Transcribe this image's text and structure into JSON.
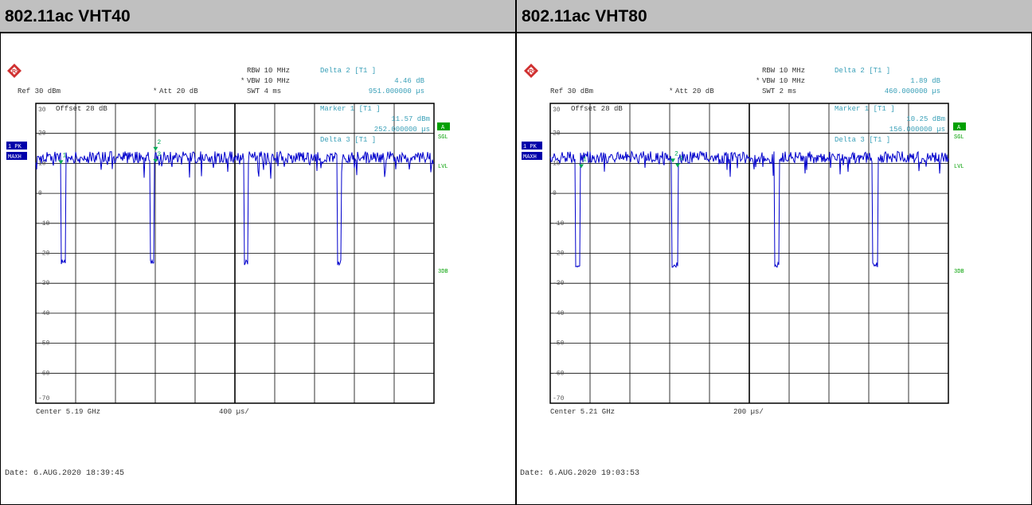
{
  "colors": {
    "trace": "#0000cc",
    "annotation": "#3aa0b8",
    "status_green": "#00a000",
    "grid": "#000000",
    "header_bg": "#c0c0c0"
  },
  "panels": [
    {
      "title": "802.11ac VHT40",
      "logo": "rohde-schwarz-logo",
      "ref_label": "Ref 30 dBm",
      "att_label": "Att 20 dB",
      "rbw_label": "RBW 10 MHz",
      "vbw_label": "VBW 10 MHz",
      "swt_label": "SWT 4 ms",
      "offset_label": "Offset  28 dB",
      "delta2_title": "Delta 2 [T1 ]",
      "delta2_value": "4.46 dB",
      "delta2_time": "951.000000 µs",
      "marker1_title": "Marker 1 [T1 ]",
      "marker1_value": "11.57 dBm",
      "marker1_time": "252.000000 µs",
      "delta3_title": "Delta 3 [T1 ]",
      "delta3_value": "",
      "delta3_time": "",
      "trace_label_1": "1 PK",
      "trace_label_2": "MAXH",
      "side_a": "A",
      "side_sgl": "SGL",
      "side_lvl": "LVL",
      "side_3db": "3DB",
      "center_label": "Center 5.19 GHz",
      "span_label": "400 µs/",
      "date_label": "Date: 6.AUG.2020  18:39:45"
    },
    {
      "title": "802.11ac VHT80",
      "logo": "rohde-schwarz-logo",
      "ref_label": "Ref 30 dBm",
      "att_label": "Att 20 dB",
      "rbw_label": "RBW 10 MHz",
      "vbw_label": "VBW 10 MHz",
      "swt_label": "SWT 2 ms",
      "offset_label": "Offset  28 dB",
      "delta2_title": "Delta 2 [T1 ]",
      "delta2_value": "1.89 dB",
      "delta2_time": "460.000000 µs",
      "marker1_title": "Marker 1 [T1 ]",
      "marker1_value": "10.25 dBm",
      "marker1_time": "156.000000 µs",
      "delta3_title": "Delta 3 [T1 ]",
      "delta3_value": "",
      "delta3_time": "",
      "trace_label_1": "1 PK",
      "trace_label_2": "MAXH",
      "side_a": "A",
      "side_sgl": "SGL",
      "side_lvl": "LVL",
      "side_3db": "3DB",
      "center_label": "Center 5.21 GHz",
      "span_label": "200 µs/",
      "date_label": "Date: 6.AUG.2020  19:03:53"
    }
  ],
  "chart_data": [
    {
      "type": "line",
      "title": "802.11ac VHT40",
      "x_unit": "µs",
      "x_range": [
        0,
        4000
      ],
      "x_per_div": 400,
      "y_unit": "dBm",
      "ylim": [
        -70,
        30
      ],
      "y_ticks": [
        30,
        20,
        10,
        0,
        -10,
        -20,
        -30,
        -40,
        -50,
        -60,
        -70
      ],
      "grid": true,
      "baseline_level": 12,
      "gap_level": -23,
      "gaps": [
        [
          250,
          300
        ],
        [
          1150,
          1190
        ],
        [
          2090,
          2130
        ],
        [
          3030,
          3070
        ]
      ],
      "markers": [
        {
          "label": "1",
          "x": 252,
          "y": 11.57
        },
        {
          "label": "2",
          "x": 1203,
          "y": 16.0
        },
        {
          "label": "3",
          "x": 1203,
          "y": 12.0
        }
      ],
      "series": [
        {
          "values": []
        }
      ]
    },
    {
      "type": "line",
      "title": "802.11ac VHT80",
      "x_unit": "µs",
      "x_range": [
        0,
        2000
      ],
      "x_per_div": 200,
      "y_unit": "dBm",
      "ylim": [
        -70,
        30
      ],
      "y_ticks": [
        30,
        20,
        10,
        0,
        -10,
        -20,
        -30,
        -40,
        -50,
        -60,
        -70
      ],
      "grid": true,
      "baseline_level": 12,
      "gap_level": -24,
      "gaps": [
        [
          125,
          150
        ],
        [
          610,
          640
        ],
        [
          1125,
          1150
        ],
        [
          1620,
          1645
        ]
      ],
      "markers": [
        {
          "label": "1",
          "x": 156,
          "y": 10.25
        },
        {
          "label": "2",
          "x": 616,
          "y": 12.14
        },
        {
          "label": "3",
          "x": 640,
          "y": 10.5
        }
      ],
      "series": [
        {
          "values": []
        }
      ]
    }
  ]
}
